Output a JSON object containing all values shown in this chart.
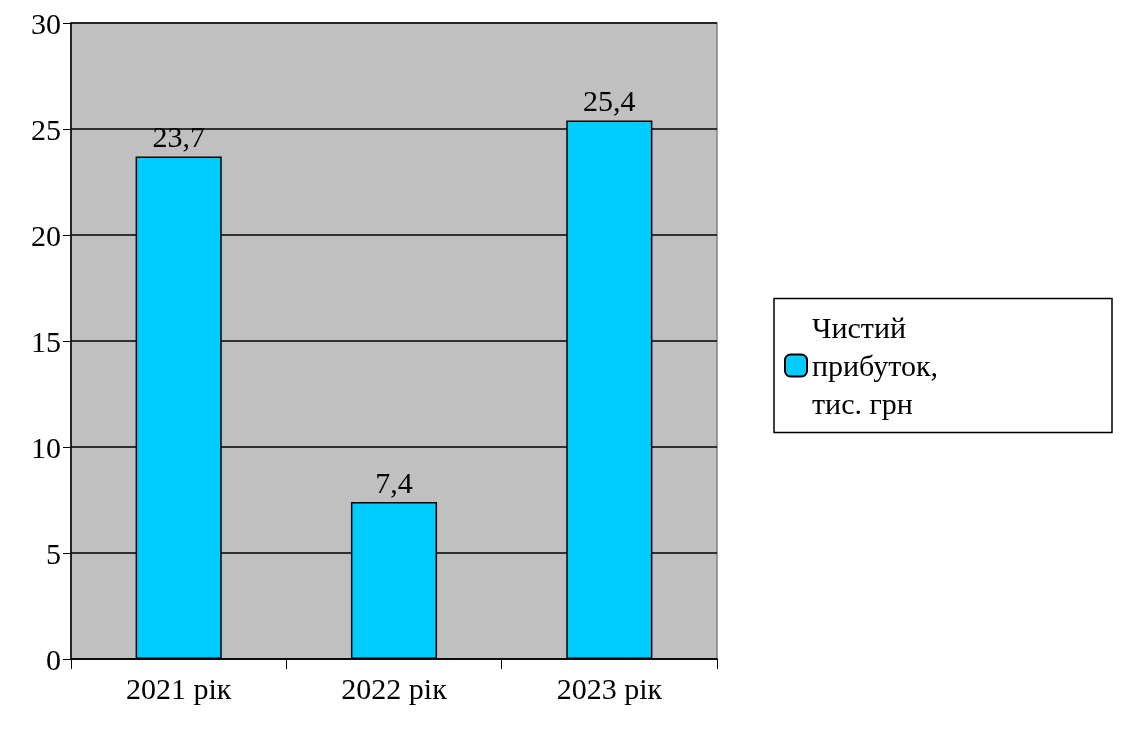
{
  "chart_data": {
    "type": "bar",
    "categories": [
      "2021 рік",
      "2022 рік",
      "2023 рік"
    ],
    "series": [
      {
        "name": "Чистий прибуток, тис. грн",
        "color": "#00ccff",
        "values": [
          23.7,
          7.4,
          25.4
        ],
        "value_labels": [
          "23,7",
          "7,4",
          "25,4"
        ]
      }
    ],
    "ylim": [
      0,
      30
    ],
    "yticks": [
      0,
      5,
      10,
      15,
      20,
      25,
      30
    ],
    "grid": "y",
    "legend": "right"
  }
}
